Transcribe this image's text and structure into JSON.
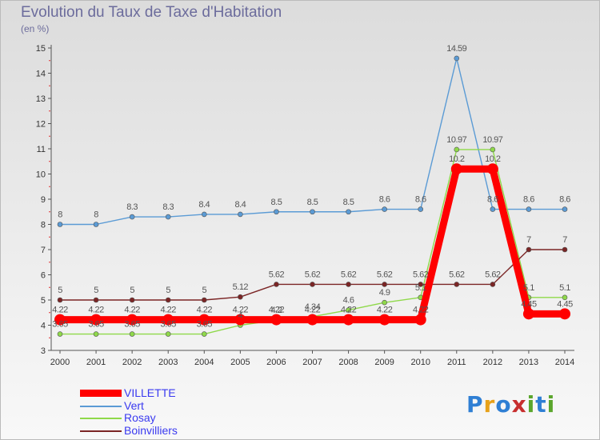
{
  "header": {
    "title": "Evolution du Taux de Taxe d'Habitation",
    "subtitle": "(en %)"
  },
  "logo": {
    "text": "Proxiti",
    "colors": [
      "#2f7fd4",
      "#e7a119",
      "#2f7fd4",
      "#c72e2e",
      "#5aa62c",
      "#2f7fd4",
      "#5aa62c"
    ]
  },
  "chart_data": {
    "type": "line",
    "title": "Evolution du Taux de Taxe d'Habitation",
    "subtitle": "(en %)",
    "xlabel": "",
    "ylabel": "",
    "ylim": [
      3,
      15
    ],
    "yticks": [
      3,
      4,
      5,
      6,
      7,
      8,
      9,
      10,
      11,
      12,
      13,
      14,
      15
    ],
    "grid": false,
    "legend": "bottom-left",
    "x": [
      "2000",
      "2001",
      "2002",
      "2003",
      "2004",
      "2005",
      "2006",
      "2007",
      "2008",
      "2009",
      "2010",
      "2011",
      "2012",
      "2013",
      "2014"
    ],
    "series": [
      {
        "name": "VILLETTE",
        "color": "#ff0000",
        "values": [
          4.22,
          4.22,
          4.22,
          4.22,
          4.22,
          4.22,
          4.22,
          4.22,
          4.22,
          4.22,
          4.22,
          10.2,
          10.2,
          4.45,
          4.45
        ],
        "labels": [
          "4.22",
          "4.22",
          "4.22",
          "4.22",
          "4.22",
          "4.22",
          "4.22",
          "4.22",
          "4.22",
          "4.22",
          "4.22",
          "10.2",
          "10.2",
          "4.45",
          "4.45"
        ]
      },
      {
        "name": "Vert",
        "color": "#5b9bd5",
        "values": [
          8,
          8,
          8.3,
          8.3,
          8.4,
          8.4,
          8.5,
          8.5,
          8.5,
          8.6,
          8.6,
          14.59,
          8.6,
          8.6,
          8.6
        ],
        "labels": [
          "8",
          "8",
          "8.3",
          "8.3",
          "8.4",
          "8.4",
          "8.5",
          "8.5",
          "8.5",
          "8.6",
          "8.6",
          "14.59",
          "8.6",
          "8.6",
          "8.6"
        ]
      },
      {
        "name": "Rosay",
        "color": "#8fd94a",
        "values": [
          3.65,
          3.65,
          3.65,
          3.65,
          3.65,
          4,
          4.2,
          4.34,
          4.6,
          4.9,
          5.1,
          10.97,
          10.97,
          5.1,
          5.1
        ],
        "labels": [
          "3.65",
          "3.65",
          "3.65",
          "3.65",
          "3.65",
          "4",
          "4.2",
          "4.34",
          "4.6",
          "4.9",
          "5.1",
          "10.97",
          "10.97",
          "5.1",
          "5.1"
        ]
      },
      {
        "name": "Boinvilliers",
        "color": "#7b2525",
        "values": [
          5,
          5,
          5,
          5,
          5,
          5.12,
          5.62,
          5.62,
          5.62,
          5.62,
          5.62,
          5.62,
          5.62,
          7,
          7
        ],
        "labels": [
          "5",
          "5",
          "5",
          "5",
          "5",
          "5.12",
          "5.62",
          "5.62",
          "5.62",
          "5.62",
          "5.62",
          "5.62",
          "5.62",
          "7",
          "7"
        ]
      }
    ]
  }
}
